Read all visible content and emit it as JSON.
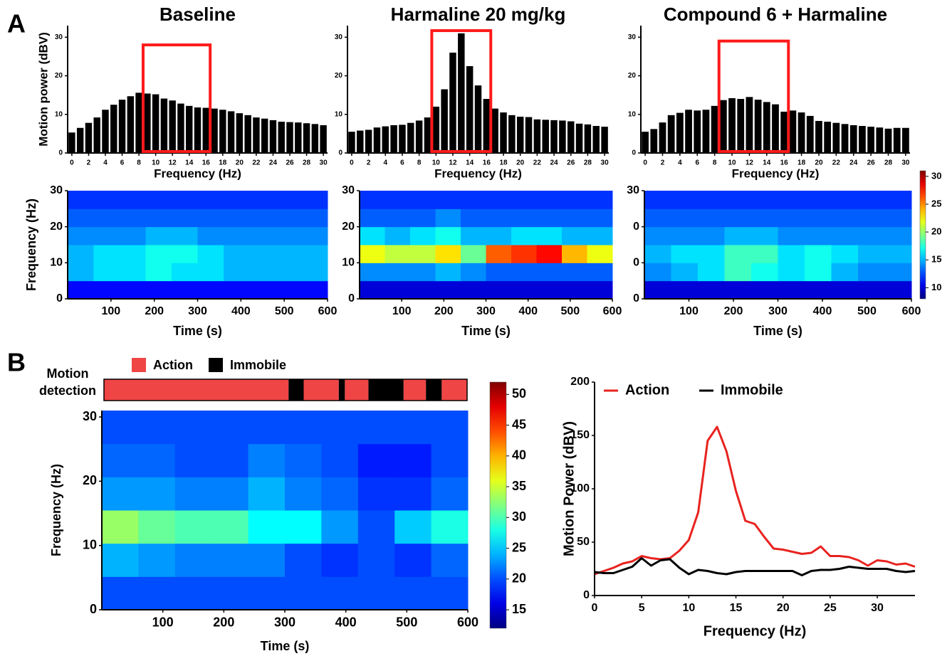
{
  "panels": [
    "A",
    "B"
  ],
  "chart_data": [
    {
      "type": "bar",
      "title": "Baseline",
      "x_label": "Frequency (Hz)",
      "y_label": "Motion power (dBV)",
      "color": "#000000",
      "x": [
        0,
        1,
        2,
        3,
        4,
        5,
        6,
        7,
        8,
        9,
        10,
        11,
        12,
        13,
        14,
        15,
        16,
        17,
        18,
        19,
        20,
        21,
        22,
        23,
        24,
        25,
        26,
        27,
        28,
        29,
        30
      ],
      "values": [
        5.3,
        6.5,
        7.8,
        9.2,
        11.2,
        12.5,
        13.8,
        14.7,
        15.6,
        15.4,
        15.2,
        14.1,
        13.6,
        12.8,
        12.2,
        11.8,
        11.7,
        11.5,
        11.2,
        10.8,
        10.3,
        9.8,
        9.2,
        8.9,
        8.5,
        8.1,
        8.0,
        7.9,
        7.7,
        7.5,
        7.2
      ],
      "xlim": [
        -0.5,
        30.5
      ],
      "xticks": [
        0,
        2,
        4,
        6,
        8,
        10,
        12,
        14,
        16,
        18,
        20,
        22,
        24,
        26,
        28,
        30
      ],
      "ylim": [
        0,
        33
      ],
      "yticks": [
        0,
        10,
        20,
        30
      ],
      "highlight": {
        "x": [
          9,
          16
        ],
        "y": [
          0,
          28
        ],
        "color": "#ff1a1a"
      }
    },
    {
      "type": "bar",
      "title": "Harmaline 20 mg/kg",
      "x_label": "Frequency (Hz)",
      "color": "#000000",
      "x": [
        0,
        1,
        2,
        3,
        4,
        5,
        6,
        7,
        8,
        9,
        10,
        11,
        12,
        13,
        14,
        15,
        16,
        17,
        18,
        19,
        20,
        21,
        22,
        23,
        24,
        25,
        26,
        27,
        28,
        29,
        30
      ],
      "values": [
        5.5,
        5.8,
        6.0,
        6.6,
        6.9,
        7.2,
        7.3,
        7.8,
        8.4,
        9.2,
        12,
        16.5,
        26,
        31,
        22.5,
        17.5,
        14,
        11.5,
        10.5,
        9.8,
        9.4,
        9.3,
        8.7,
        8.6,
        8.5,
        8.4,
        8.2,
        7.6,
        7.4,
        7.0,
        6.8
      ],
      "xlim": [
        -0.5,
        30.5
      ],
      "xticks": [
        0,
        2,
        4,
        6,
        8,
        10,
        12,
        14,
        16,
        18,
        20,
        22,
        24,
        26,
        28,
        30
      ],
      "ylim": [
        0,
        33
      ],
      "yticks": [
        0,
        10,
        20,
        30
      ],
      "highlight": {
        "x": [
          10,
          16
        ],
        "y": [
          0,
          31.7
        ],
        "color": "#ff1a1a"
      }
    },
    {
      "type": "bar",
      "title": "Compound 6 + Harmaline",
      "x_label": "Frequency (Hz)",
      "color": "#000000",
      "x": [
        0,
        1,
        2,
        3,
        4,
        5,
        6,
        7,
        8,
        9,
        10,
        11,
        12,
        13,
        14,
        15,
        16,
        17,
        18,
        19,
        20,
        21,
        22,
        23,
        24,
        25,
        26,
        27,
        28,
        29,
        30
      ],
      "values": [
        5.5,
        6.2,
        7.9,
        9.8,
        10.4,
        11.2,
        11.0,
        11.2,
        12.2,
        13.7,
        14.2,
        14.0,
        14.5,
        13.8,
        13.2,
        12.6,
        10.7,
        11.0,
        10.5,
        9.6,
        8.3,
        8.1,
        7.8,
        7.5,
        7.2,
        7.0,
        6.8,
        6.6,
        6.3,
        6.5,
        6.5
      ],
      "xlim": [
        -0.5,
        30.5
      ],
      "xticks": [
        0,
        2,
        4,
        6,
        8,
        10,
        12,
        14,
        16,
        18,
        20,
        22,
        24,
        26,
        28,
        30
      ],
      "ylim": [
        0,
        33
      ],
      "yticks": [
        0,
        10,
        20,
        30
      ],
      "highlight": {
        "x": [
          9,
          16
        ],
        "y": [
          0,
          29
        ],
        "color": "#ff1a1a"
      }
    },
    {
      "type": "heatmap",
      "x_label": "Time (s)",
      "y_label": "Frequency (Hz)",
      "colormap": "jet",
      "xlim": [
        0,
        600
      ],
      "xticks": [
        100,
        200,
        300,
        400,
        500,
        600
      ],
      "ylim": [
        0,
        30
      ],
      "yticks": [
        0,
        10,
        20,
        30
      ],
      "zlim": [
        8,
        31
      ],
      "z": [
        [
          11,
          11,
          11,
          11,
          11,
          11,
          11,
          11,
          11,
          11
        ],
        [
          15,
          16,
          16,
          17,
          16,
          16,
          15,
          15,
          15,
          15
        ],
        [
          15,
          16,
          16,
          17,
          17,
          16,
          15,
          15,
          15,
          15
        ],
        [
          14,
          14,
          14,
          15,
          15,
          14,
          14,
          14,
          14,
          14
        ],
        [
          13,
          13,
          13,
          13,
          13,
          13,
          13,
          13,
          13,
          13
        ],
        [
          12,
          12,
          12,
          12,
          12,
          12,
          12,
          12,
          12,
          12
        ]
      ]
    },
    {
      "type": "heatmap",
      "x_label": "Time (s)",
      "colormap": "jet",
      "xlim": [
        0,
        600
      ],
      "xticks": [
        100,
        200,
        300,
        400,
        500,
        600
      ],
      "ylim": [
        0,
        30
      ],
      "yticks": [
        0,
        10,
        20,
        30
      ],
      "zlim": [
        8,
        31
      ],
      "z": [
        [
          10,
          10,
          10,
          10,
          10,
          10,
          10,
          10,
          10,
          10
        ],
        [
          14,
          14,
          14,
          15,
          14,
          13,
          13,
          13,
          13,
          13
        ],
        [
          22,
          21,
          21,
          23,
          19,
          26,
          27,
          28,
          24,
          22
        ],
        [
          16,
          15,
          16,
          17,
          15,
          15,
          16,
          16,
          15,
          15
        ],
        [
          13,
          13,
          13,
          14,
          13,
          13,
          13,
          13,
          13,
          13
        ],
        [
          12,
          12,
          12,
          12,
          12,
          12,
          12,
          12,
          12,
          12
        ]
      ]
    },
    {
      "type": "heatmap",
      "x_label": "Time (s)",
      "colormap": "jet",
      "xlim": [
        0,
        600
      ],
      "xticks": [
        100,
        200,
        300,
        400,
        500,
        600
      ],
      "ylim": [
        0,
        30
      ],
      "yticks": [
        0,
        {
          "value": 10,
          "label": "0"
        },
        {
          "value": 20,
          "label": "0"
        },
        30
      ],
      "zlim": [
        8,
        31
      ],
      "zticks": [
        10,
        15,
        20,
        25,
        30
      ],
      "z": [
        [
          10,
          10,
          10,
          10,
          10,
          10,
          10,
          10,
          10,
          10
        ],
        [
          14,
          15,
          16,
          18,
          17,
          16,
          17,
          15,
          14,
          14
        ],
        [
          15,
          16,
          16,
          18,
          18,
          16,
          17,
          16,
          15,
          15
        ],
        [
          14,
          14,
          14,
          15,
          15,
          14,
          14,
          14,
          14,
          14
        ],
        [
          13,
          13,
          13,
          13,
          13,
          13,
          13,
          13,
          13,
          13
        ],
        [
          12,
          12,
          12,
          12,
          12,
          12,
          12,
          12,
          12,
          12
        ]
      ]
    },
    {
      "type": "timeline",
      "label_lines": [
        "Motion",
        "detection"
      ],
      "xlim": [
        0,
        600
      ],
      "series": [
        {
          "name": "Action",
          "color": "#f04545",
          "intervals": [
            [
              0,
              305
            ],
            [
              330,
              388
            ],
            [
              398,
              437
            ],
            [
              495,
              532
            ],
            [
              558,
              600
            ]
          ]
        },
        {
          "name": "Immobile",
          "color": "#000000",
          "intervals": [
            [
              305,
              330
            ],
            [
              388,
              398
            ],
            [
              437,
              495
            ],
            [
              532,
              558
            ]
          ]
        }
      ]
    },
    {
      "type": "heatmap",
      "x_label": "Time (s)",
      "y_label": "Frequency (Hz)",
      "colormap": "jet",
      "xlim": [
        0,
        600
      ],
      "xticks": [
        100,
        200,
        300,
        400,
        500,
        600
      ],
      "ylim": [
        0,
        31
      ],
      "yticks": [
        0,
        10,
        20,
        30
      ],
      "zlim": [
        12,
        52
      ],
      "zticks": [
        15,
        20,
        25,
        30,
        35,
        40,
        45,
        50
      ],
      "z": [
        [
          20,
          20,
          20,
          20,
          20,
          20,
          20,
          20,
          20,
          20
        ],
        [
          24,
          23,
          22,
          22,
          22,
          20,
          19,
          20,
          19,
          21
        ],
        [
          33,
          31,
          30,
          30,
          27,
          27,
          23,
          20,
          25,
          28
        ],
        [
          23,
          23,
          22,
          22,
          24,
          22,
          21,
          19,
          19,
          21
        ],
        [
          21,
          21,
          20,
          20,
          22,
          21,
          20,
          18,
          18,
          20
        ],
        [
          20,
          20,
          20,
          20,
          20,
          20,
          20,
          20,
          20,
          20
        ]
      ]
    },
    {
      "type": "line",
      "x_label": "Frequency (Hz)",
      "y_label": "Motion Power (dBV)",
      "x": [
        0,
        1,
        2,
        3,
        4,
        5,
        6,
        7,
        8,
        9,
        10,
        11,
        12,
        13,
        14,
        15,
        16,
        17,
        18,
        19,
        20,
        21,
        22,
        23,
        24,
        25,
        26,
        27,
        28,
        29,
        30,
        31,
        32,
        33,
        34
      ],
      "xlim": [
        0,
        34
      ],
      "xticks": [
        0,
        5,
        10,
        15,
        20,
        25,
        30
      ],
      "ylim": [
        0,
        200
      ],
      "yticks": [
        0,
        50,
        100,
        150,
        200
      ],
      "series": [
        {
          "name": "Action",
          "color": "#e8231f",
          "values": [
            20,
            23,
            26,
            30,
            32,
            37,
            35,
            34,
            35,
            42,
            52,
            78,
            145,
            158,
            135,
            98,
            70,
            67,
            55,
            44,
            43,
            41,
            39,
            40,
            46,
            37,
            37,
            36,
            33,
            28,
            33,
            32,
            29,
            30,
            27
          ]
        },
        {
          "name": "Immobile",
          "color": "#000000",
          "values": [
            22,
            21,
            21,
            24,
            27,
            35,
            28,
            33,
            34,
            26,
            20,
            24,
            23,
            21,
            20,
            22,
            23,
            23,
            23,
            23,
            23,
            23,
            19,
            23,
            24,
            24,
            25,
            27,
            26,
            25,
            25,
            25,
            23,
            22,
            23
          ]
        }
      ]
    }
  ]
}
